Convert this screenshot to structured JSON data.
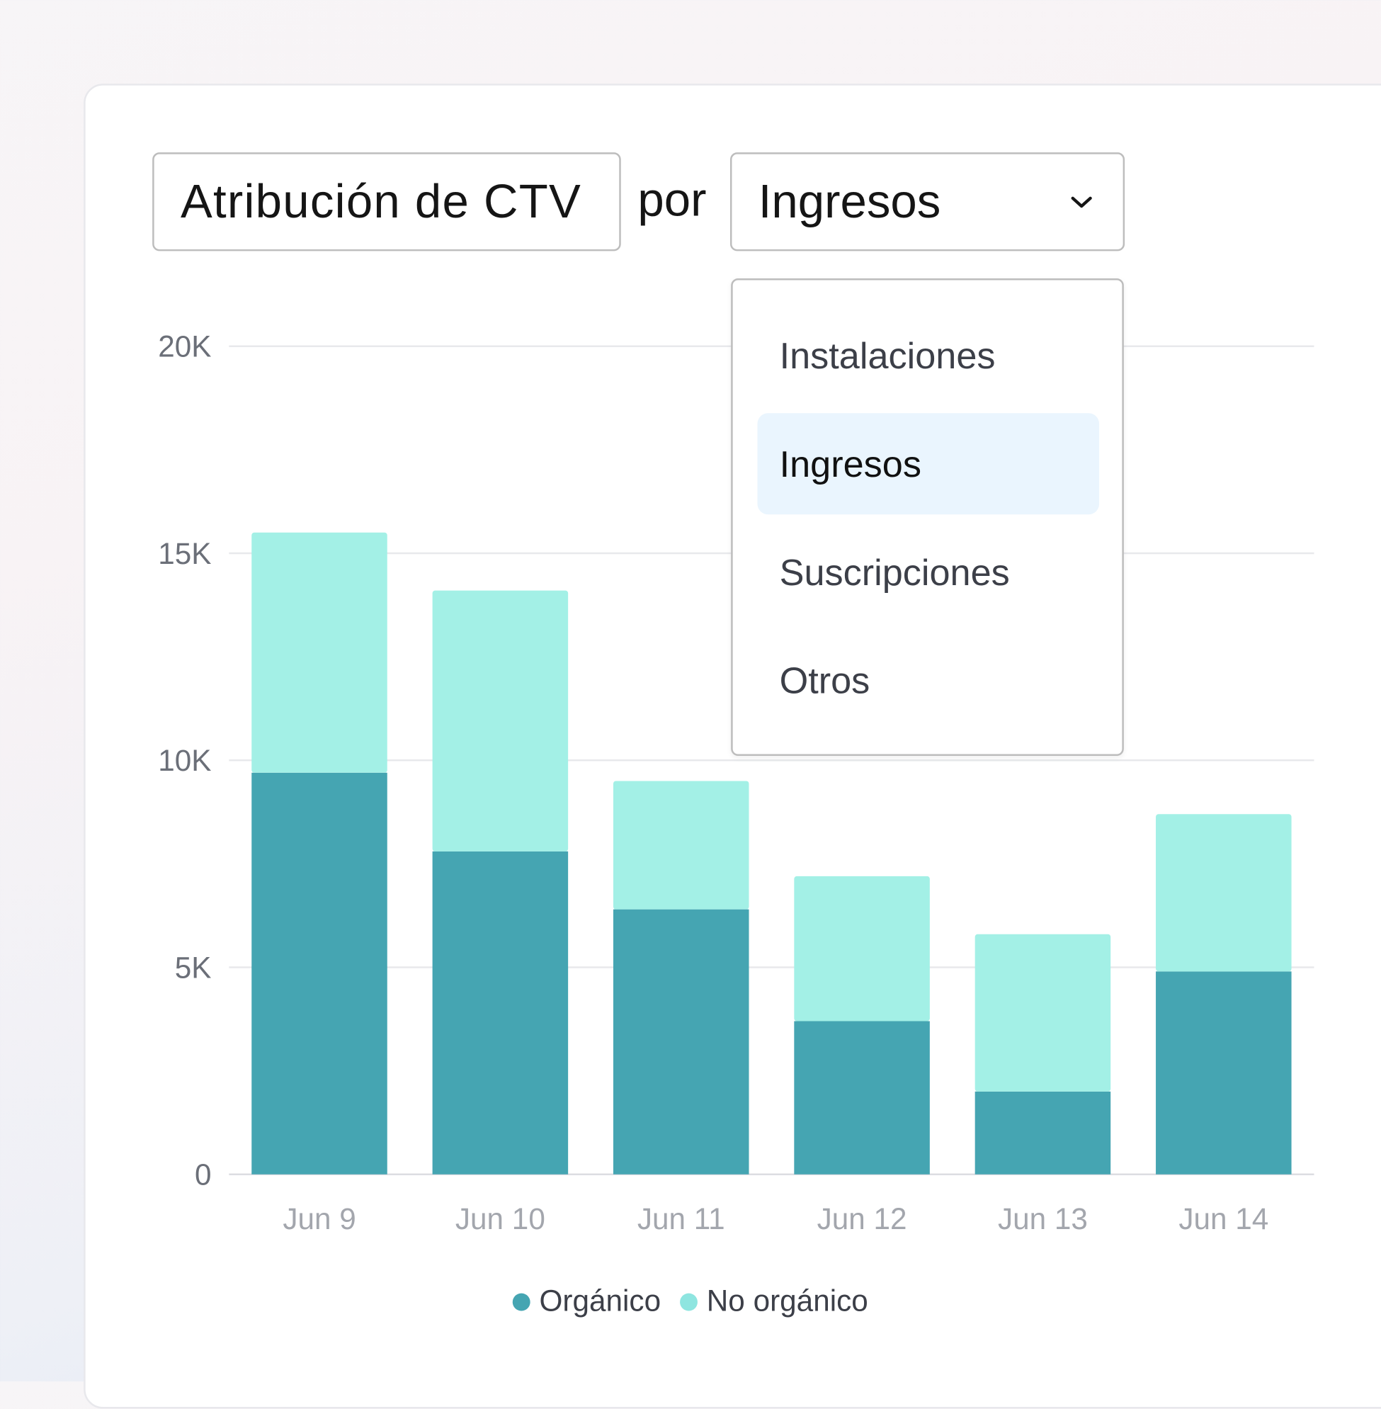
{
  "header": {
    "metric_label": "Atribución de CTV",
    "connector": "por",
    "selected_dimension": "Ingresos",
    "dropdown_icon": "chevron-down-icon"
  },
  "dropdown": {
    "options": [
      "Instalaciones",
      "Ingresos",
      "Suscripciones",
      "Otros"
    ],
    "selected_index": 1
  },
  "chart_data": {
    "type": "bar",
    "stacked": true,
    "categories": [
      "Jun 9",
      "Jun 10",
      "Jun 11",
      "Jun 12",
      "Jun 13",
      "Jun 14"
    ],
    "series": [
      {
        "name": "Orgánico",
        "color": "#45a5b2",
        "values": [
          9700,
          7800,
          6400,
          3700,
          2000,
          4900
        ]
      },
      {
        "name": "No orgánico",
        "color": "#a3f0e6",
        "values": [
          5800,
          6300,
          3100,
          3500,
          3800,
          3800
        ]
      }
    ],
    "ylim": [
      0,
      20000
    ],
    "yticks": [
      0,
      5000,
      10000,
      15000,
      20000
    ],
    "ytick_labels": [
      "0",
      "5K",
      "10K",
      "15K",
      "20K"
    ],
    "grid": true,
    "legend_position": "bottom",
    "xlabel": "",
    "ylabel": "",
    "title": ""
  }
}
